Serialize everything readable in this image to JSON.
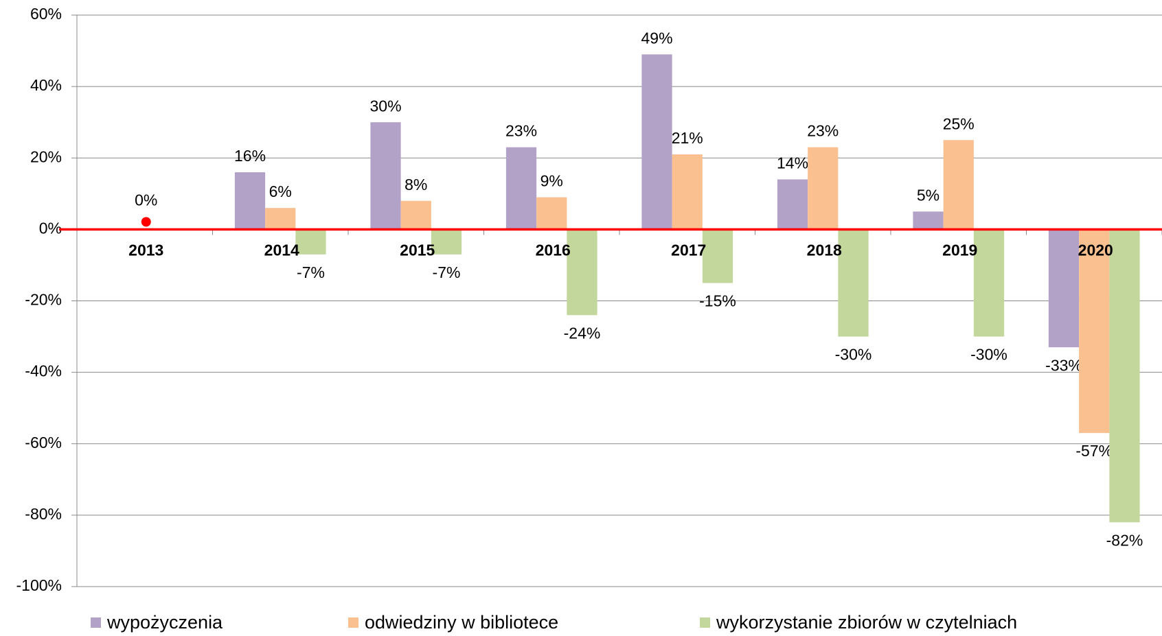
{
  "chart_data": {
    "type": "bar",
    "categories": [
      "2013",
      "2014",
      "2015",
      "2016",
      "2017",
      "2018",
      "2019",
      "2020"
    ],
    "series": [
      {
        "name": "wypożyczenia",
        "color": "#b3a2c7",
        "values": [
          null,
          16,
          30,
          23,
          49,
          14,
          5,
          -33
        ],
        "value_labels": [
          null,
          "16%",
          "30%",
          "23%",
          "49%",
          "14%",
          "5%",
          "-33%"
        ]
      },
      {
        "name": "odwiedziny w bibliotece",
        "color": "#fac090",
        "values": [
          null,
          6,
          8,
          9,
          21,
          23,
          25,
          -57
        ],
        "value_labels": [
          null,
          "6%",
          "8%",
          "9%",
          "21%",
          "23%",
          "25%",
          "-57%"
        ]
      },
      {
        "name": "wykorzystanie zbiorów w czytelniach",
        "color": "#c3d69b",
        "values": [
          null,
          -7,
          -7,
          -24,
          -15,
          -30,
          -30,
          -82
        ],
        "value_labels": [
          null,
          "-7%",
          "-7%",
          "-24%",
          "-15%",
          "-30%",
          "-30%",
          "-82%"
        ]
      }
    ],
    "marker": {
      "value": 0,
      "value_label": "0%",
      "color": "#ff0000"
    },
    "zero_line_color": "#ff0000",
    "ylim": [
      -100,
      60
    ],
    "yticks": [
      {
        "value": -100,
        "label": "-100%"
      },
      {
        "value": -80,
        "label": "-80%"
      },
      {
        "value": -60,
        "label": "-60%"
      },
      {
        "value": -40,
        "label": "-40%"
      },
      {
        "value": -20,
        "label": "-20%"
      },
      {
        "value": 0,
        "label": "0%"
      },
      {
        "value": 20,
        "label": "20%"
      },
      {
        "value": 40,
        "label": "40%"
      },
      {
        "value": 60,
        "label": "60%"
      }
    ],
    "grid": true
  }
}
